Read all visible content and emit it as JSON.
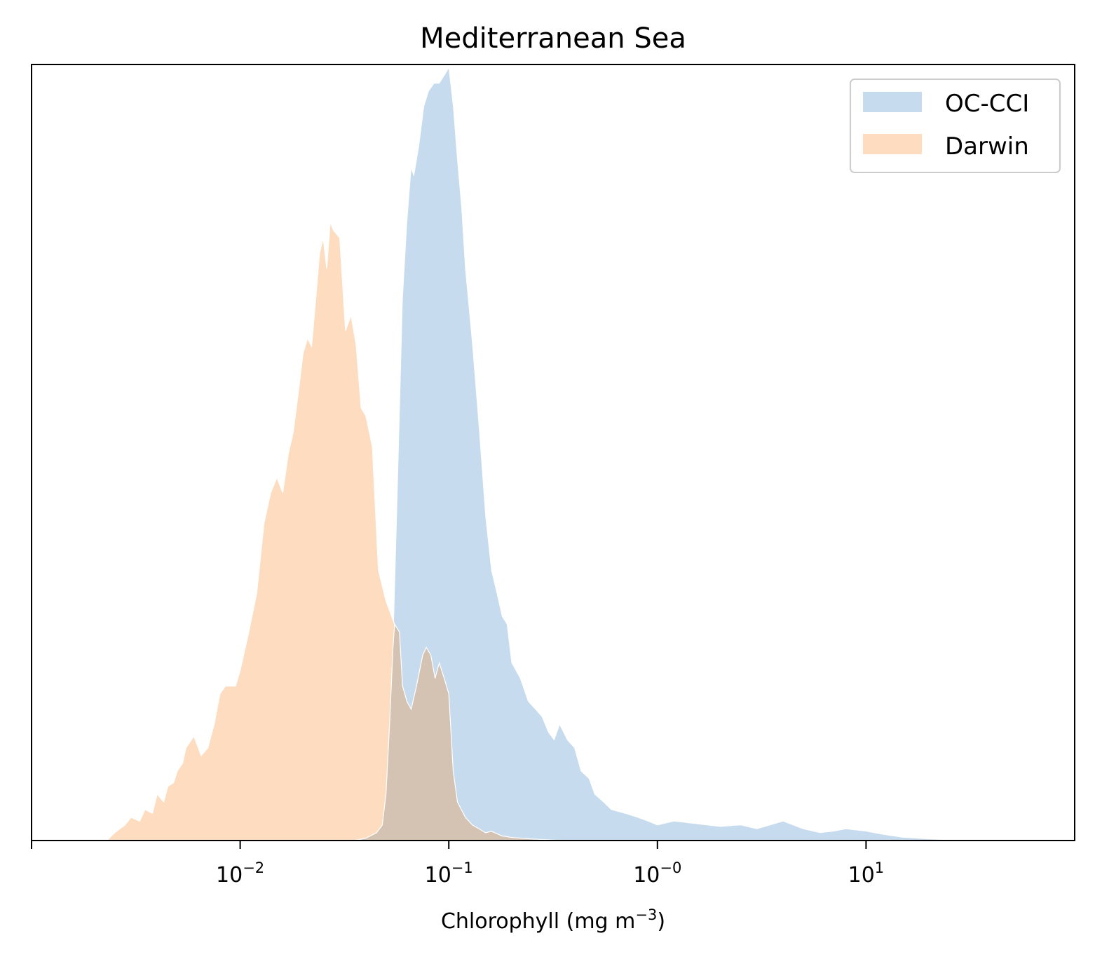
{
  "chart_data": {
    "type": "area",
    "title": "Mediterranean Sea",
    "xlabel": {
      "text": "Chlorophyll  (mg m",
      "superscript": "−3",
      "suffix": ")"
    },
    "ylabel": "",
    "x_scale": "log",
    "xlim": [
      0.001,
      100
    ],
    "ylim": [
      0,
      1.0
    ],
    "y_ticks_shown": false,
    "grid": false,
    "legend_position": "top-right",
    "x_ticks": [
      {
        "value": 0.01,
        "base": "10",
        "exp": "−2"
      },
      {
        "value": 0.1,
        "base": "10",
        "exp": "−1"
      },
      {
        "value": 1,
        "base": "10",
        "exp": "−0"
      },
      {
        "value": 10,
        "base": "10",
        "exp": "1"
      }
    ],
    "series": [
      {
        "name": "OC-CCI",
        "color": "#c6dbed",
        "points": [
          [
            0.035,
            0.0
          ],
          [
            0.04,
            0.003
          ],
          [
            0.045,
            0.01
          ],
          [
            0.048,
            0.02
          ],
          [
            0.05,
            0.06
          ],
          [
            0.052,
            0.15
          ],
          [
            0.054,
            0.25
          ],
          [
            0.056,
            0.4
          ],
          [
            0.058,
            0.55
          ],
          [
            0.06,
            0.7
          ],
          [
            0.063,
            0.8
          ],
          [
            0.066,
            0.87
          ],
          [
            0.068,
            0.86
          ],
          [
            0.072,
            0.9
          ],
          [
            0.076,
            0.95
          ],
          [
            0.08,
            0.97
          ],
          [
            0.085,
            0.98
          ],
          [
            0.09,
            0.98
          ],
          [
            0.095,
            0.99
          ],
          [
            0.1,
            1.0
          ],
          [
            0.105,
            0.95
          ],
          [
            0.11,
            0.88
          ],
          [
            0.115,
            0.82
          ],
          [
            0.12,
            0.74
          ],
          [
            0.13,
            0.64
          ],
          [
            0.14,
            0.53
          ],
          [
            0.15,
            0.42
          ],
          [
            0.16,
            0.35
          ],
          [
            0.17,
            0.32
          ],
          [
            0.18,
            0.29
          ],
          [
            0.19,
            0.28
          ],
          [
            0.2,
            0.23
          ],
          [
            0.22,
            0.21
          ],
          [
            0.24,
            0.18
          ],
          [
            0.26,
            0.17
          ],
          [
            0.28,
            0.16
          ],
          [
            0.3,
            0.14
          ],
          [
            0.32,
            0.13
          ],
          [
            0.34,
            0.15
          ],
          [
            0.37,
            0.13
          ],
          [
            0.4,
            0.12
          ],
          [
            0.43,
            0.09
          ],
          [
            0.47,
            0.08
          ],
          [
            0.5,
            0.06
          ],
          [
            0.55,
            0.05
          ],
          [
            0.6,
            0.04
          ],
          [
            0.7,
            0.035
          ],
          [
            0.8,
            0.03
          ],
          [
            0.9,
            0.025
          ],
          [
            1.0,
            0.02
          ],
          [
            1.2,
            0.025
          ],
          [
            1.5,
            0.022
          ],
          [
            2.0,
            0.018
          ],
          [
            2.5,
            0.02
          ],
          [
            3.0,
            0.015
          ],
          [
            4.0,
            0.025
          ],
          [
            5.0,
            0.015
          ],
          [
            6.0,
            0.01
          ],
          [
            7.0,
            0.012
          ],
          [
            8.0,
            0.015
          ],
          [
            10.0,
            0.012
          ],
          [
            12.0,
            0.008
          ],
          [
            15.0,
            0.004
          ],
          [
            20.0,
            0.002
          ],
          [
            25.0,
            0.001
          ],
          [
            30.0,
            0.0
          ]
        ]
      },
      {
        "name": "Darwin",
        "color": "#fddcbf",
        "points": [
          [
            0.0023,
            0.0
          ],
          [
            0.0025,
            0.01
          ],
          [
            0.0028,
            0.02
          ],
          [
            0.003,
            0.03
          ],
          [
            0.0033,
            0.025
          ],
          [
            0.0035,
            0.04
          ],
          [
            0.0038,
            0.035
          ],
          [
            0.004,
            0.06
          ],
          [
            0.0043,
            0.05
          ],
          [
            0.0045,
            0.07
          ],
          [
            0.0048,
            0.075
          ],
          [
            0.005,
            0.09
          ],
          [
            0.0053,
            0.1
          ],
          [
            0.0055,
            0.12
          ],
          [
            0.006,
            0.135
          ],
          [
            0.0065,
            0.11
          ],
          [
            0.007,
            0.12
          ],
          [
            0.0075,
            0.15
          ],
          [
            0.008,
            0.19
          ],
          [
            0.0085,
            0.2
          ],
          [
            0.009,
            0.2
          ],
          [
            0.0095,
            0.2
          ],
          [
            0.01,
            0.22
          ],
          [
            0.011,
            0.27
          ],
          [
            0.012,
            0.32
          ],
          [
            0.013,
            0.41
          ],
          [
            0.014,
            0.45
          ],
          [
            0.015,
            0.47
          ],
          [
            0.016,
            0.45
          ],
          [
            0.017,
            0.5
          ],
          [
            0.018,
            0.53
          ],
          [
            0.019,
            0.58
          ],
          [
            0.02,
            0.63
          ],
          [
            0.021,
            0.65
          ],
          [
            0.022,
            0.64
          ],
          [
            0.023,
            0.7
          ],
          [
            0.024,
            0.76
          ],
          [
            0.025,
            0.78
          ],
          [
            0.026,
            0.74
          ],
          [
            0.027,
            0.8
          ],
          [
            0.028,
            0.79
          ],
          [
            0.03,
            0.78
          ],
          [
            0.032,
            0.66
          ],
          [
            0.034,
            0.68
          ],
          [
            0.036,
            0.64
          ],
          [
            0.038,
            0.56
          ],
          [
            0.04,
            0.55
          ],
          [
            0.043,
            0.51
          ],
          [
            0.046,
            0.35
          ],
          [
            0.05,
            0.31
          ],
          [
            0.055,
            0.28
          ],
          [
            0.06,
            0.2
          ],
          [
            0.07,
            0.12
          ],
          [
            0.08,
            0.08
          ],
          [
            0.09,
            0.04
          ],
          [
            0.1,
            0.02
          ],
          [
            0.11,
            0.01
          ],
          [
            0.13,
            0.005
          ],
          [
            0.15,
            0.0
          ]
        ]
      },
      {
        "name": "",
        "color": "#d4c3b3",
        "points": [
          [
            0.035,
            0.0
          ],
          [
            0.04,
            0.003
          ],
          [
            0.045,
            0.01
          ],
          [
            0.048,
            0.02
          ],
          [
            0.05,
            0.06
          ],
          [
            0.052,
            0.15
          ],
          [
            0.054,
            0.25
          ],
          [
            0.055,
            0.28
          ],
          [
            0.058,
            0.27
          ],
          [
            0.06,
            0.2
          ],
          [
            0.063,
            0.18
          ],
          [
            0.066,
            0.17
          ],
          [
            0.07,
            0.2
          ],
          [
            0.075,
            0.24
          ],
          [
            0.078,
            0.25
          ],
          [
            0.082,
            0.24
          ],
          [
            0.086,
            0.21
          ],
          [
            0.09,
            0.23
          ],
          [
            0.095,
            0.21
          ],
          [
            0.1,
            0.19
          ],
          [
            0.105,
            0.09
          ],
          [
            0.11,
            0.05
          ],
          [
            0.12,
            0.03
          ],
          [
            0.13,
            0.02
          ],
          [
            0.14,
            0.015
          ],
          [
            0.15,
            0.01
          ],
          [
            0.16,
            0.012
          ],
          [
            0.18,
            0.006
          ],
          [
            0.2,
            0.004
          ],
          [
            0.25,
            0.002
          ],
          [
            0.3,
            0.001
          ],
          [
            0.35,
            0.0
          ]
        ]
      }
    ]
  }
}
